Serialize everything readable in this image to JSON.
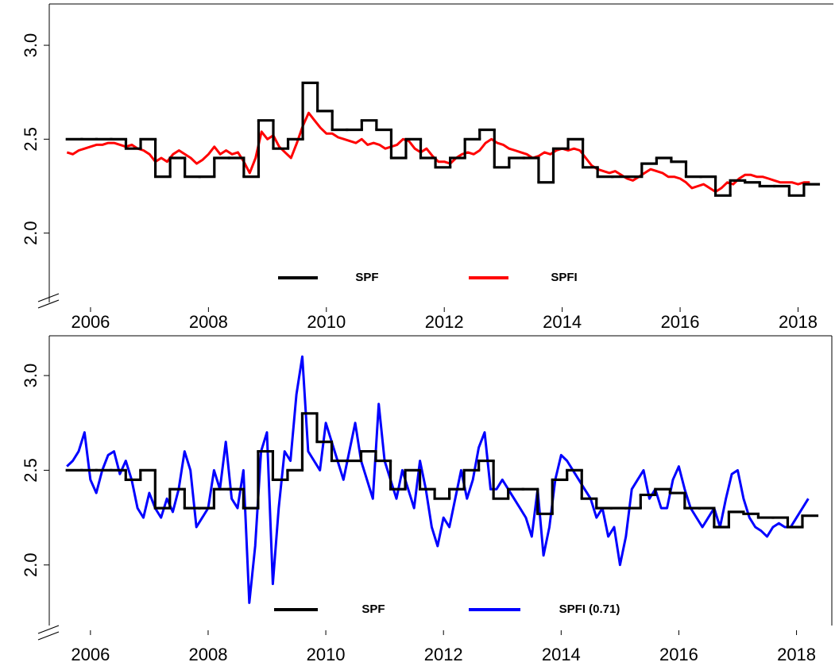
{
  "chart_data": [
    {
      "type": "line",
      "xlim": [
        2005.3,
        2018.6
      ],
      "xticks": [
        2006,
        2008,
        2010,
        2012,
        2014,
        2016,
        2018
      ],
      "ylim": [
        1.58,
        3.22
      ],
      "yticks": [
        {
          "value": 3,
          "label": "3.0"
        },
        {
          "value": 2.5,
          "label": "2.5"
        },
        {
          "value": 2,
          "label": "2.0"
        }
      ],
      "legend": "bottom",
      "series": [
        {
          "name": "SPF",
          "color": "#000000",
          "drawstyle": "steps-post",
          "x": [
            2005.6,
            2005.85,
            2006.1,
            2006.35,
            2006.6,
            2006.85,
            2007.1,
            2007.35,
            2007.6,
            2007.85,
            2008.1,
            2008.35,
            2008.6,
            2008.85,
            2009.1,
            2009.35,
            2009.6,
            2009.85,
            2010.1,
            2010.35,
            2010.6,
            2010.85,
            2011.1,
            2011.35,
            2011.6,
            2011.85,
            2012.1,
            2012.35,
            2012.6,
            2012.85,
            2013.1,
            2013.35,
            2013.6,
            2013.85,
            2014.1,
            2014.35,
            2014.6,
            2014.85,
            2015.1,
            2015.35,
            2015.6,
            2015.85,
            2016.1,
            2016.35,
            2016.6,
            2016.85,
            2017.1,
            2017.35,
            2017.6,
            2017.85,
            2018.1
          ],
          "values": [
            2.5,
            2.5,
            2.5,
            2.5,
            2.45,
            2.5,
            2.3,
            2.4,
            2.3,
            2.3,
            2.4,
            2.4,
            2.3,
            2.6,
            2.45,
            2.5,
            2.8,
            2.65,
            2.55,
            2.55,
            2.6,
            2.55,
            2.4,
            2.5,
            2.4,
            2.35,
            2.4,
            2.5,
            2.55,
            2.35,
            2.4,
            2.4,
            2.27,
            2.45,
            2.5,
            2.35,
            2.3,
            2.3,
            2.3,
            2.37,
            2.4,
            2.38,
            2.3,
            2.3,
            2.2,
            2.28,
            2.27,
            2.25,
            2.25,
            2.2,
            2.26
          ]
        },
        {
          "name": "SPFI",
          "color": "#ff0000",
          "x": [
            2005.6,
            2005.7,
            2005.8,
            2005.9,
            2006.0,
            2006.1,
            2006.2,
            2006.3,
            2006.4,
            2006.5,
            2006.6,
            2006.7,
            2006.8,
            2006.9,
            2007.0,
            2007.1,
            2007.2,
            2007.3,
            2007.4,
            2007.5,
            2007.6,
            2007.7,
            2007.8,
            2007.9,
            2008.0,
            2008.1,
            2008.2,
            2008.3,
            2008.4,
            2008.5,
            2008.6,
            2008.7,
            2008.8,
            2008.9,
            2009.0,
            2009.1,
            2009.2,
            2009.3,
            2009.4,
            2009.5,
            2009.6,
            2009.7,
            2009.8,
            2009.9,
            2010.0,
            2010.1,
            2010.2,
            2010.3,
            2010.4,
            2010.5,
            2010.6,
            2010.7,
            2010.8,
            2010.9,
            2011.0,
            2011.1,
            2011.2,
            2011.3,
            2011.4,
            2011.5,
            2011.6,
            2011.7,
            2011.8,
            2011.9,
            2012.0,
            2012.1,
            2012.2,
            2012.3,
            2012.4,
            2012.5,
            2012.6,
            2012.7,
            2012.8,
            2012.9,
            2013.0,
            2013.1,
            2013.2,
            2013.3,
            2013.4,
            2013.5,
            2013.6,
            2013.7,
            2013.8,
            2013.9,
            2014.0,
            2014.1,
            2014.2,
            2014.3,
            2014.4,
            2014.5,
            2014.6,
            2014.7,
            2014.8,
            2014.9,
            2015.0,
            2015.1,
            2015.2,
            2015.3,
            2015.4,
            2015.5,
            2015.6,
            2015.7,
            2015.8,
            2015.9,
            2016.0,
            2016.1,
            2016.2,
            2016.3,
            2016.4,
            2016.5,
            2016.6,
            2016.7,
            2016.8,
            2016.9,
            2017.0,
            2017.1,
            2017.2,
            2017.3,
            2017.4,
            2017.5,
            2017.6,
            2017.7,
            2017.8,
            2017.9,
            2018.0,
            2018.1,
            2018.2
          ],
          "values": [
            2.43,
            2.42,
            2.44,
            2.45,
            2.46,
            2.47,
            2.47,
            2.48,
            2.48,
            2.47,
            2.46,
            2.47,
            2.45,
            2.44,
            2.42,
            2.38,
            2.4,
            2.38,
            2.42,
            2.44,
            2.42,
            2.4,
            2.37,
            2.39,
            2.42,
            2.46,
            2.42,
            2.44,
            2.42,
            2.43,
            2.38,
            2.32,
            2.4,
            2.54,
            2.5,
            2.52,
            2.46,
            2.43,
            2.4,
            2.48,
            2.57,
            2.64,
            2.6,
            2.56,
            2.53,
            2.53,
            2.51,
            2.5,
            2.49,
            2.48,
            2.5,
            2.47,
            2.48,
            2.47,
            2.45,
            2.46,
            2.47,
            2.5,
            2.49,
            2.45,
            2.43,
            2.45,
            2.41,
            2.38,
            2.38,
            2.37,
            2.4,
            2.42,
            2.43,
            2.42,
            2.44,
            2.48,
            2.5,
            2.48,
            2.47,
            2.45,
            2.44,
            2.43,
            2.42,
            2.4,
            2.41,
            2.43,
            2.42,
            2.44,
            2.45,
            2.44,
            2.45,
            2.44,
            2.4,
            2.36,
            2.34,
            2.33,
            2.32,
            2.33,
            2.31,
            2.29,
            2.28,
            2.3,
            2.32,
            2.34,
            2.33,
            2.32,
            2.3,
            2.3,
            2.29,
            2.27,
            2.24,
            2.25,
            2.26,
            2.24,
            2.22,
            2.24,
            2.27,
            2.26,
            2.29,
            2.31,
            2.31,
            2.3,
            2.3,
            2.29,
            2.28,
            2.27,
            2.27,
            2.27,
            2.26,
            2.27,
            2.27
          ]
        }
      ]
    },
    {
      "type": "line",
      "xlim": [
        2005.3,
        2018.6
      ],
      "xticks": [
        2006,
        2008,
        2010,
        2012,
        2014,
        2016,
        2018
      ],
      "ylim": [
        1.63,
        3.21
      ],
      "yticks": [
        {
          "value": 3,
          "label": "3.0"
        },
        {
          "value": 2.5,
          "label": "2.5"
        },
        {
          "value": 2,
          "label": "2.0"
        }
      ],
      "legend": "bottom",
      "series": [
        {
          "name": "SPF",
          "color": "#000000",
          "drawstyle": "steps-post",
          "x": [
            2005.6,
            2005.85,
            2006.1,
            2006.35,
            2006.6,
            2006.85,
            2007.1,
            2007.35,
            2007.6,
            2007.85,
            2008.1,
            2008.35,
            2008.6,
            2008.85,
            2009.1,
            2009.35,
            2009.6,
            2009.85,
            2010.1,
            2010.35,
            2010.6,
            2010.85,
            2011.1,
            2011.35,
            2011.6,
            2011.85,
            2012.1,
            2012.35,
            2012.6,
            2012.85,
            2013.1,
            2013.35,
            2013.6,
            2013.85,
            2014.1,
            2014.35,
            2014.6,
            2014.85,
            2015.1,
            2015.35,
            2015.6,
            2015.85,
            2016.1,
            2016.35,
            2016.6,
            2016.85,
            2017.1,
            2017.35,
            2017.6,
            2017.85,
            2018.1
          ],
          "values": [
            2.5,
            2.5,
            2.5,
            2.5,
            2.45,
            2.5,
            2.3,
            2.4,
            2.3,
            2.3,
            2.4,
            2.4,
            2.3,
            2.6,
            2.45,
            2.5,
            2.8,
            2.65,
            2.55,
            2.55,
            2.6,
            2.55,
            2.4,
            2.5,
            2.4,
            2.35,
            2.4,
            2.5,
            2.55,
            2.35,
            2.4,
            2.4,
            2.27,
            2.45,
            2.5,
            2.35,
            2.3,
            2.3,
            2.3,
            2.37,
            2.4,
            2.38,
            2.3,
            2.3,
            2.2,
            2.28,
            2.27,
            2.25,
            2.25,
            2.2,
            2.26
          ]
        },
        {
          "name": "SPFI (0.71)",
          "color": "#0000ff",
          "x": [
            2005.6,
            2005.7,
            2005.8,
            2005.9,
            2006.0,
            2006.1,
            2006.2,
            2006.3,
            2006.4,
            2006.5,
            2006.6,
            2006.7,
            2006.8,
            2006.9,
            2007.0,
            2007.1,
            2007.2,
            2007.3,
            2007.4,
            2007.5,
            2007.6,
            2007.7,
            2007.8,
            2007.9,
            2008.0,
            2008.1,
            2008.2,
            2008.3,
            2008.4,
            2008.5,
            2008.6,
            2008.7,
            2008.8,
            2008.9,
            2009.0,
            2009.1,
            2009.2,
            2009.3,
            2009.4,
            2009.5,
            2009.6,
            2009.7,
            2009.8,
            2009.9,
            2010.0,
            2010.1,
            2010.2,
            2010.3,
            2010.4,
            2010.5,
            2010.6,
            2010.7,
            2010.8,
            2010.9,
            2011.0,
            2011.1,
            2011.2,
            2011.3,
            2011.4,
            2011.5,
            2011.6,
            2011.7,
            2011.8,
            2011.9,
            2012.0,
            2012.1,
            2012.2,
            2012.3,
            2012.4,
            2012.5,
            2012.6,
            2012.7,
            2012.8,
            2012.9,
            2013.0,
            2013.1,
            2013.2,
            2013.3,
            2013.4,
            2013.5,
            2013.6,
            2013.7,
            2013.8,
            2013.9,
            2014.0,
            2014.1,
            2014.2,
            2014.3,
            2014.4,
            2014.5,
            2014.6,
            2014.7,
            2014.8,
            2014.9,
            2015.0,
            2015.1,
            2015.2,
            2015.3,
            2015.4,
            2015.5,
            2015.6,
            2015.7,
            2015.8,
            2015.9,
            2016.0,
            2016.1,
            2016.2,
            2016.3,
            2016.4,
            2016.5,
            2016.6,
            2016.7,
            2016.8,
            2016.9,
            2017.0,
            2017.1,
            2017.2,
            2017.3,
            2017.4,
            2017.5,
            2017.6,
            2017.7,
            2017.8,
            2017.9,
            2018.0,
            2018.1,
            2018.2
          ],
          "values": [
            2.52,
            2.55,
            2.6,
            2.7,
            2.45,
            2.38,
            2.5,
            2.58,
            2.6,
            2.48,
            2.55,
            2.45,
            2.3,
            2.25,
            2.38,
            2.3,
            2.25,
            2.35,
            2.28,
            2.4,
            2.6,
            2.5,
            2.2,
            2.25,
            2.3,
            2.5,
            2.4,
            2.65,
            2.35,
            2.3,
            2.5,
            1.8,
            2.1,
            2.6,
            2.7,
            1.9,
            2.3,
            2.6,
            2.55,
            2.9,
            3.1,
            2.6,
            2.55,
            2.5,
            2.75,
            2.65,
            2.55,
            2.45,
            2.6,
            2.75,
            2.55,
            2.45,
            2.35,
            2.85,
            2.55,
            2.45,
            2.35,
            2.5,
            2.4,
            2.3,
            2.55,
            2.4,
            2.2,
            2.1,
            2.25,
            2.2,
            2.35,
            2.5,
            2.35,
            2.45,
            2.62,
            2.7,
            2.4,
            2.4,
            2.45,
            2.4,
            2.35,
            2.3,
            2.25,
            2.15,
            2.4,
            2.05,
            2.2,
            2.45,
            2.58,
            2.55,
            2.5,
            2.45,
            2.4,
            2.35,
            2.25,
            2.3,
            2.15,
            2.2,
            2.0,
            2.15,
            2.4,
            2.45,
            2.5,
            2.35,
            2.4,
            2.3,
            2.3,
            2.45,
            2.52,
            2.4,
            2.3,
            2.25,
            2.2,
            2.25,
            2.3,
            2.2,
            2.35,
            2.48,
            2.5,
            2.35,
            2.25,
            2.2,
            2.18,
            2.15,
            2.2,
            2.22,
            2.2,
            2.2,
            2.25,
            2.3,
            2.35
          ]
        }
      ]
    }
  ]
}
